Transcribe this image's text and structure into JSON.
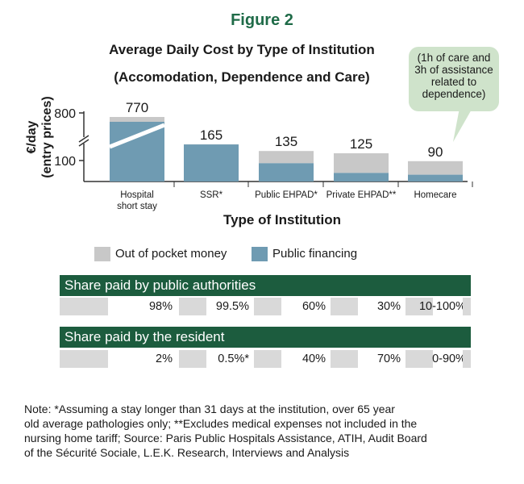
{
  "figure_label": "Figure 2",
  "chart_data": {
    "type": "bar",
    "title": "Average Daily Cost by Type of Institution",
    "subtitle": "(Accomodation, Dependence and Care)",
    "ylabel": "€/day\n(entry prices)",
    "ylabel_line1": "€/day",
    "ylabel_line2": "(entry prices)",
    "xlabel": "Type of Institution",
    "y_ticks": [
      "800",
      "100"
    ],
    "y_axis_break": true,
    "categories": [
      "Hospital short stay",
      "SSR*",
      "Public EHPAD*",
      "Private EHPAD**",
      "Homecare"
    ],
    "category_labels": [
      [
        "Hospital",
        "short stay"
      ],
      [
        "SSR*"
      ],
      [
        "Public EHPAD*"
      ],
      [
        "Private EHPAD**"
      ],
      [
        "Homecare"
      ]
    ],
    "totals": [
      770,
      165,
      135,
      125,
      90
    ],
    "total_labels": [
      "770",
      "165",
      "135",
      "125",
      "90"
    ],
    "series": [
      {
        "name": "Public financing",
        "values": [
          755,
          164,
          81,
          38,
          30
        ],
        "color": "#6f9bb2"
      },
      {
        "name": "Out of pocket money",
        "values": [
          15,
          1,
          54,
          87,
          60
        ],
        "color": "#c8c8c8"
      }
    ],
    "legend_position": "bottom",
    "grid": false
  },
  "callout": {
    "lines": [
      "(1h of care and",
      "3h of assistance",
      "related to",
      "dependence)"
    ],
    "color": "#cfe3cb"
  },
  "legend": {
    "out_of_pocket": "Out of pocket money",
    "public": "Public financing"
  },
  "tables": {
    "public_share": {
      "header": "Share paid by public authorities",
      "values": [
        "98%",
        "99.5%",
        "60%",
        "30%",
        "10-100%"
      ]
    },
    "resident_share": {
      "header": "Share paid by the resident",
      "values": [
        "2%",
        "0.5%*",
        "40%",
        "70%",
        "0-90%"
      ]
    }
  },
  "note": {
    "lines": [
      "Note: *Assuming a stay longer than 31 days at the institution, over 65 year",
      "old average pathologies only; **Excludes medical expenses not included in the",
      "nursing home tariff; Source: Paris Public Hospitals Assistance, ATIH, Audit Board",
      "of the Sécurité Sociale, L.E.K. Research, Interviews and Analysis"
    ]
  },
  "colors": {
    "brand_green": "#1f6b48",
    "table_header": "#1c5c3e",
    "public": "#6f9bb2",
    "out_of_pocket": "#c8c8c8",
    "cell_gray": "#d9d9d9"
  }
}
